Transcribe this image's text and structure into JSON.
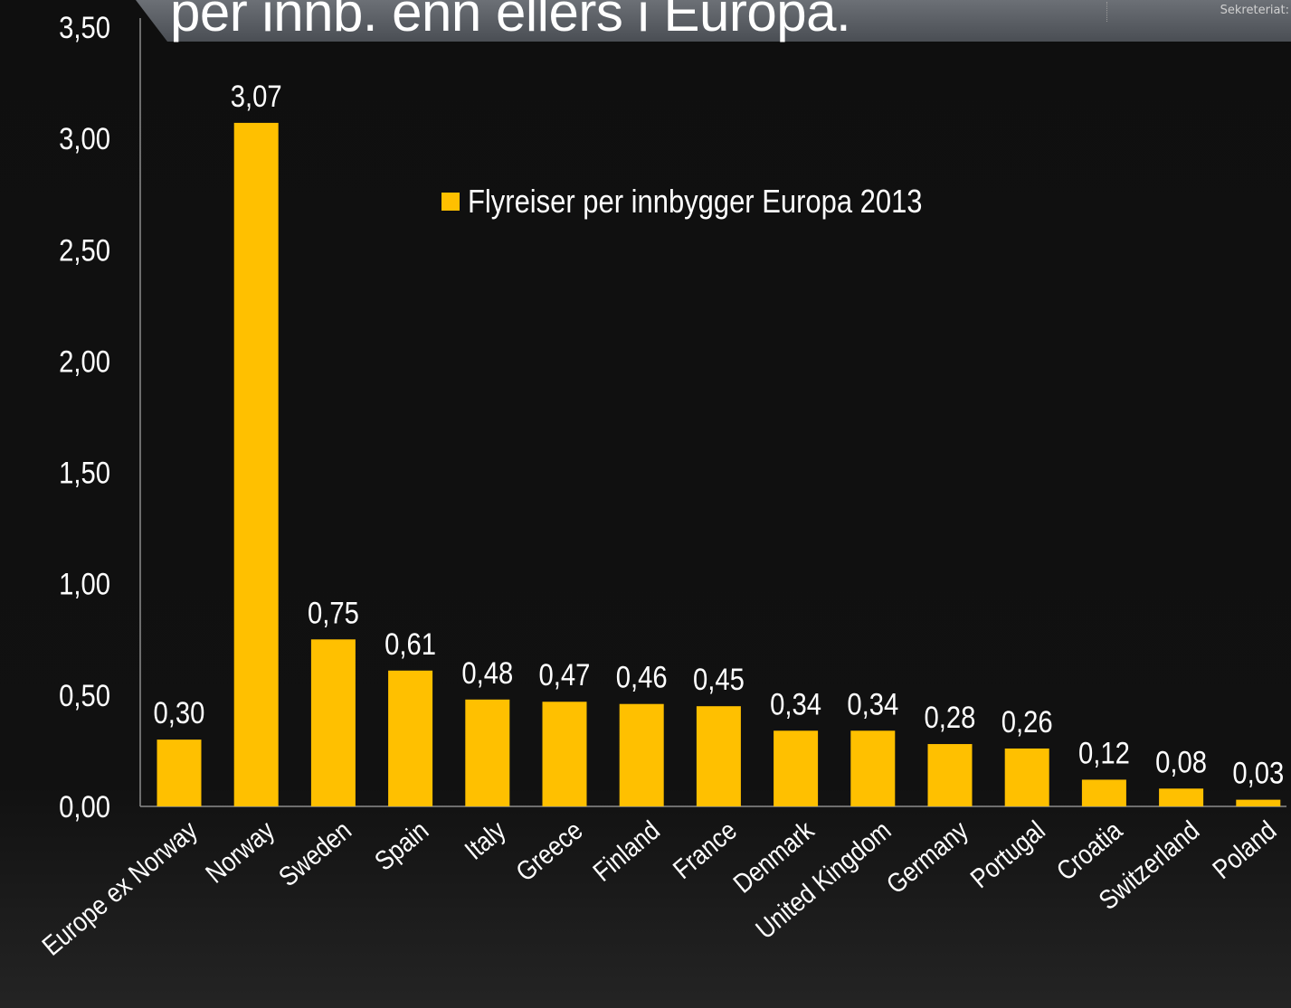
{
  "title": "per innb. enn ellers i Europa.",
  "header": {
    "right_label": "Sekreteriat:"
  },
  "colors": {
    "bar": "#ffc000",
    "text": "#ffffff",
    "background": "#0f0f0f",
    "axis": "#8c8c8c"
  },
  "chart_data": {
    "type": "bar",
    "categories": [
      "Europe ex Norway",
      "Norway",
      "Sweden",
      "Spain",
      "Italy",
      "Greece",
      "Finland",
      "France",
      "Denmark",
      "United Kingdom",
      "Germany",
      "Portugal",
      "Croatia",
      "Switzerland",
      "Poland"
    ],
    "series": [
      {
        "name": "Flyreiser per innbygger Europa 2013",
        "values": [
          0.3,
          3.07,
          0.75,
          0.61,
          0.48,
          0.47,
          0.46,
          0.45,
          0.34,
          0.34,
          0.28,
          0.26,
          0.12,
          0.08,
          0.03
        ]
      }
    ],
    "data_labels": [
      "0,30",
      "3,07",
      "0,75",
      "0,61",
      "0,48",
      "0,47",
      "0,46",
      "0,45",
      "0,34",
      "0,34",
      "0,28",
      "0,26",
      "0,12",
      "0,08",
      "0,03"
    ],
    "y_ticks": [
      "0,00",
      "0,50",
      "1,00",
      "1,50",
      "2,00",
      "2,50",
      "3,00",
      "3,50"
    ],
    "ylim": [
      0,
      3.5
    ],
    "grid": false,
    "legend": {
      "position": "top-center",
      "label": "Flyreiser per innbygger Europa 2013"
    },
    "xlabel": "",
    "ylabel": ""
  }
}
